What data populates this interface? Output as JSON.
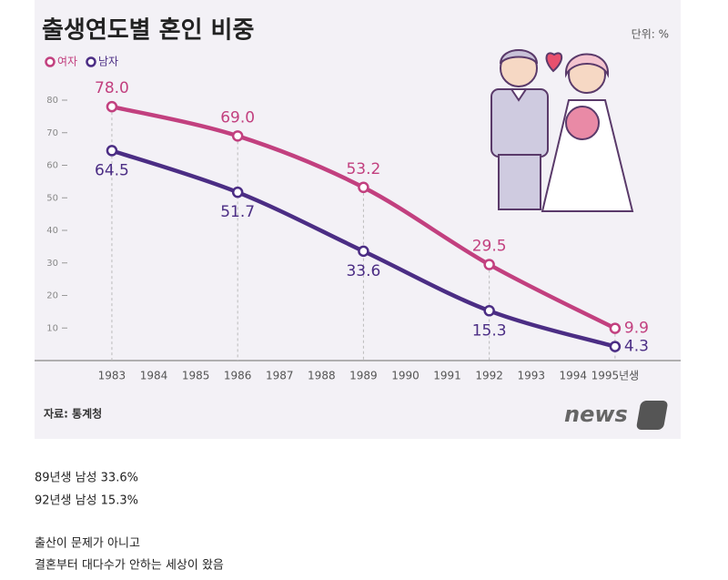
{
  "chart_data": {
    "type": "line",
    "title": "출생연도별 혼인 비중",
    "unit": "단위: %",
    "x": [
      1983,
      1986,
      1989,
      1992,
      1995
    ],
    "series": [
      {
        "name": "여자",
        "color": "#c2407f",
        "values": [
          78.0,
          69.0,
          53.2,
          29.5,
          9.9
        ],
        "value_labels": [
          "78.0",
          "69.0",
          "53.2",
          "29.5",
          "9.9"
        ]
      },
      {
        "name": "남자",
        "color": "#4b2d84",
        "values": [
          64.5,
          51.7,
          33.6,
          15.3,
          4.3
        ],
        "value_labels": [
          "64.5",
          "51.7",
          "33.6",
          "15.3",
          "4.3"
        ]
      }
    ],
    "xlim": [
      1981.2,
      1996.5
    ],
    "xticks": [
      1983,
      1984,
      1985,
      1986,
      1987,
      1988,
      1989,
      1990,
      1991,
      1992,
      1993,
      1994,
      {
        "value": 1995,
        "label": "1995년생"
      }
    ],
    "ylim": [
      0,
      80
    ],
    "yticks": [
      10,
      20,
      30,
      40,
      50,
      60,
      70,
      80
    ],
    "source": "자료: 통계청",
    "logo": "news"
  },
  "post": {
    "lines": [
      "89년생 남성 33.6%",
      "92년생 남성 15.3%",
      "출산이 문제가 아니고",
      "결혼부터 대다수가 안하는 세상이 왔음"
    ]
  }
}
